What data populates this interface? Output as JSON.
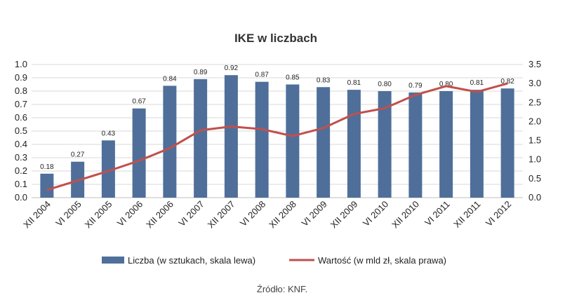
{
  "chart_data": {
    "type": "bar",
    "title": "IKE w liczbach",
    "categories": [
      "XII 2004",
      "VI 2005",
      "XII 2005",
      "VI 2006",
      "XII 2006",
      "VI 2007",
      "XII 2007",
      "VI 2008",
      "XII 2008",
      "VI 2009",
      "XII 2009",
      "VI 2010",
      "XII 2010",
      "VI 2011",
      "XII 2011",
      "VI 2012"
    ],
    "series": [
      {
        "name": "Liczba (w sztukach, skala lewa)",
        "type": "bar",
        "axis": "left",
        "color": "#4f6f9a",
        "values": [
          0.18,
          0.27,
          0.43,
          0.67,
          0.84,
          0.89,
          0.92,
          0.87,
          0.85,
          0.83,
          0.81,
          0.8,
          0.79,
          0.8,
          0.81,
          0.82
        ],
        "labels": [
          "0.18",
          "0.27",
          "0.43",
          "0.67",
          "0.84",
          "0.89",
          "0.92",
          "0.87",
          "0.85",
          "0.83",
          "0.81",
          "0.80",
          "0.79",
          "0.80",
          "0.81",
          "0.82"
        ]
      },
      {
        "name": "Wartość (w mld zł, skala prawa)",
        "type": "line",
        "axis": "right",
        "color": "#c0504d",
        "values": [
          0.2,
          0.45,
          0.7,
          0.97,
          1.3,
          1.77,
          1.87,
          1.8,
          1.62,
          1.83,
          2.2,
          2.35,
          2.7,
          2.93,
          2.78,
          3.0
        ]
      }
    ],
    "y_left": {
      "lim": [
        0,
        1.0
      ],
      "ticks": [
        "0.0",
        "0.1",
        "0.2",
        "0.3",
        "0.4",
        "0.5",
        "0.6",
        "0.7",
        "0.8",
        "0.9",
        "1.0"
      ]
    },
    "y_right": {
      "lim": [
        0,
        3.5
      ],
      "ticks": [
        "0.0",
        "0.5",
        "1.0",
        "1.5",
        "2.0",
        "2.5",
        "3.0",
        "3.5"
      ]
    },
    "grid": true,
    "legend": "bottom",
    "source": "Źródło: KNF."
  }
}
